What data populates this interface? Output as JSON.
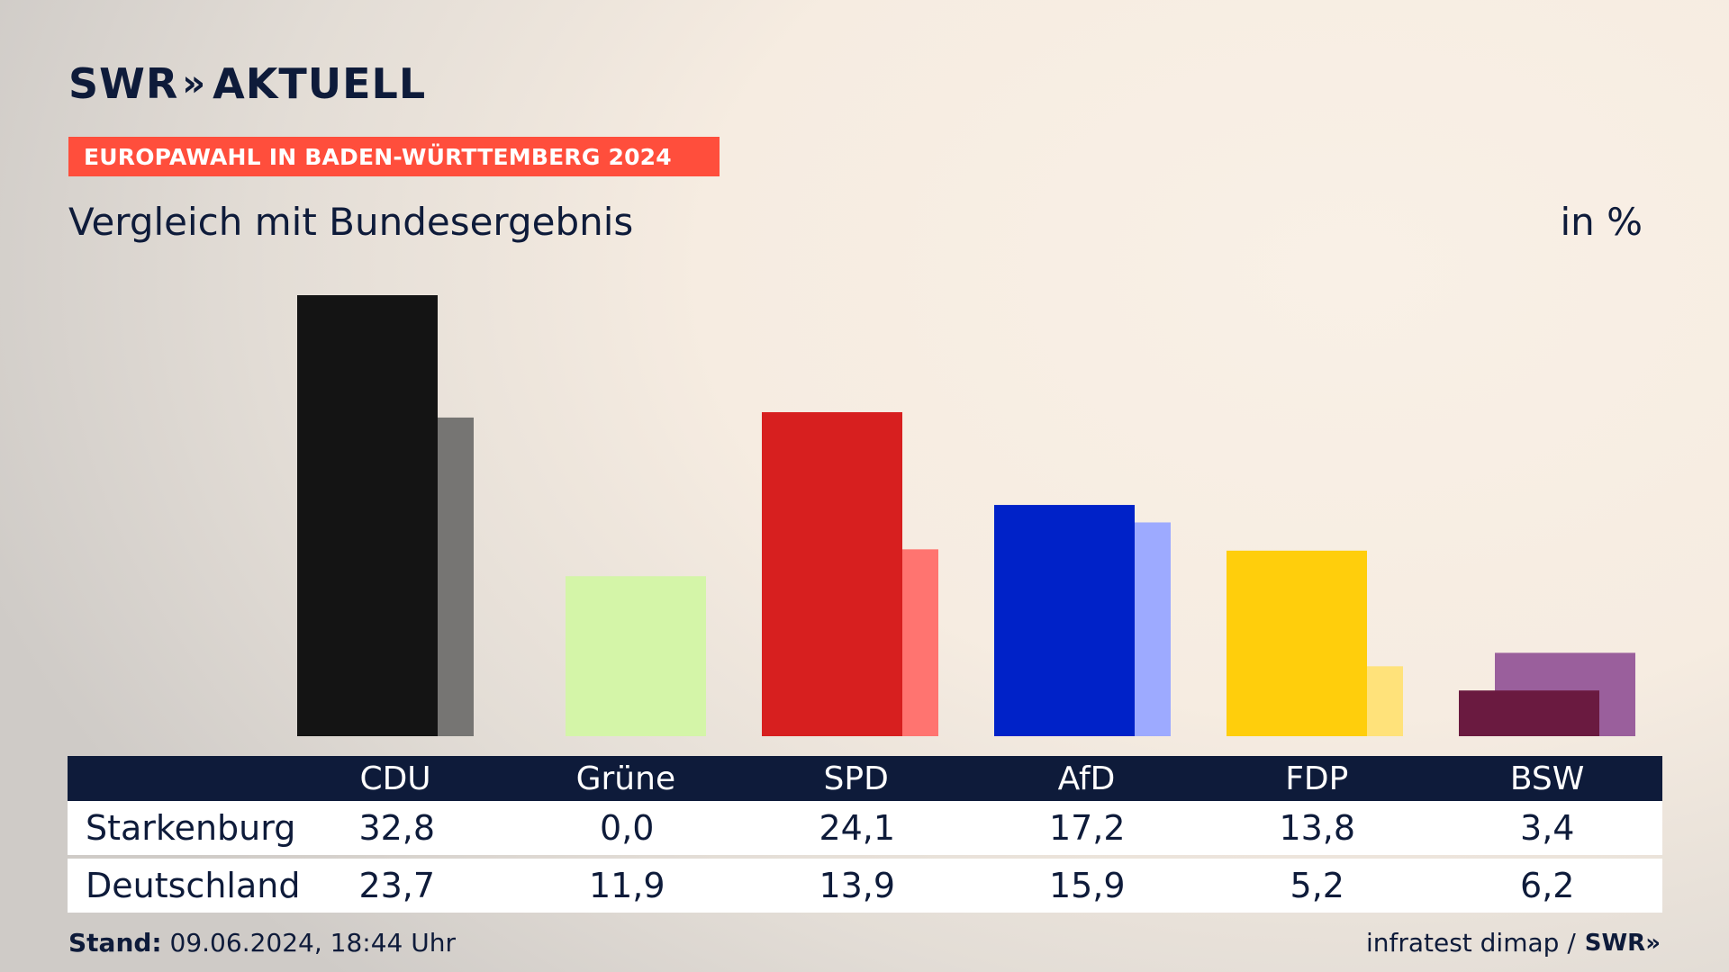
{
  "brand": {
    "logo_text": "SWR",
    "logo_chevrons": "»",
    "logo_suffix": "AKTUELL",
    "banner": "EUROPAWAHL IN BADEN-WÜRTTEMBERG 2024",
    "banner_color": "#ff4e3c"
  },
  "subtitle": "Vergleich mit Bundesergebnis",
  "unit": "in %",
  "table": {
    "headers": [
      "CDU",
      "Grüne",
      "SPD",
      "AfD",
      "FDP",
      "BSW"
    ],
    "rows": [
      {
        "label": "Starkenburg",
        "values": [
          "32,8",
          "0,0",
          "24,1",
          "17,2",
          "13,8",
          "3,4"
        ]
      },
      {
        "label": "Deutschland",
        "values": [
          "23,7",
          "11,9",
          "13,9",
          "15,9",
          "5,2",
          "6,2"
        ]
      }
    ]
  },
  "footer": {
    "stand_label": "Stand:",
    "stand_value": "09.06.2024, 18:44 Uhr",
    "source": "infratest dimap /",
    "source_logo": "SWR»"
  },
  "chart_data": {
    "type": "bar",
    "categories": [
      "CDU",
      "Grüne",
      "SPD",
      "AfD",
      "FDP",
      "BSW"
    ],
    "series": [
      {
        "name": "Starkenburg",
        "values": [
          32.8,
          0.0,
          24.1,
          17.2,
          13.8,
          3.4
        ],
        "colors": [
          "#141414",
          "#d4f5a8",
          "#d71f1f",
          "#0022c8",
          "#ffce0c",
          "#6a1a40"
        ]
      },
      {
        "name": "Deutschland",
        "values": [
          23.7,
          11.9,
          13.9,
          15.9,
          5.2,
          6.2
        ],
        "colors": [
          "#767573",
          "#d4f5a8",
          "#ff7470",
          "#9daaff",
          "#ffe27a",
          "#9a5f9c"
        ]
      }
    ],
    "title": "Vergleich mit Bundesergebnis",
    "ylabel": "in %",
    "ylim": [
      0,
      32.8
    ],
    "grid": false,
    "legend": "none"
  }
}
